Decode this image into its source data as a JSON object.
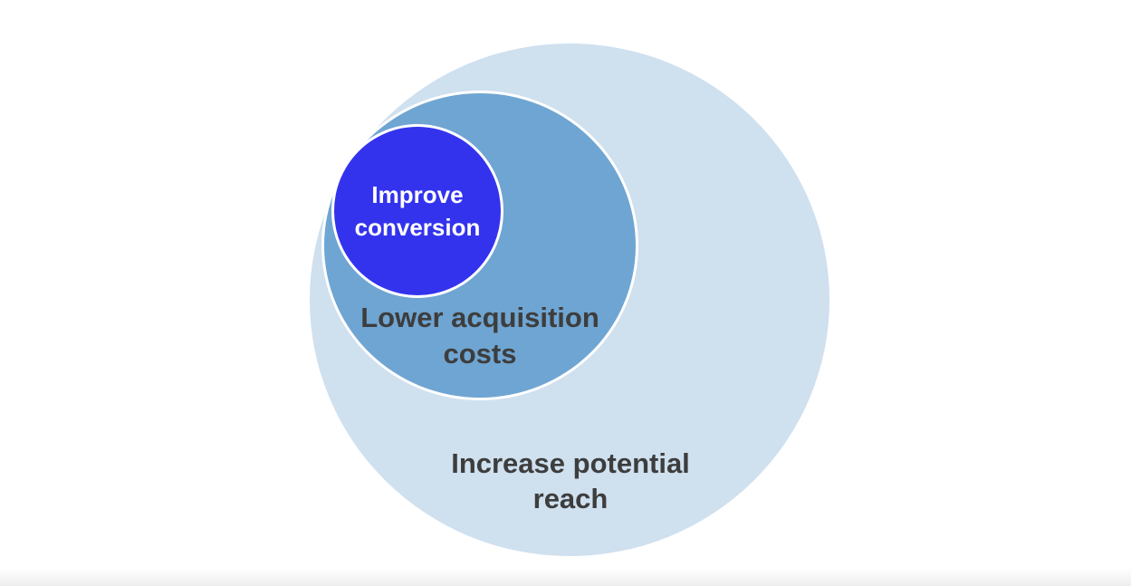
{
  "diagram": {
    "colors": {
      "outer": "#cfe0ef",
      "middle": "#6fa5d2",
      "inner": "#3333ee",
      "dark_text": "#3d3d3d",
      "light_text": "#ffffff"
    },
    "circles": {
      "outer": {
        "label_line1": "Increase potential",
        "label_line2": "reach"
      },
      "middle": {
        "label_line1": "Lower acquisition",
        "label_line2": "costs"
      },
      "inner": {
        "label_line1": "Improve",
        "label_line2": "conversion"
      }
    }
  }
}
